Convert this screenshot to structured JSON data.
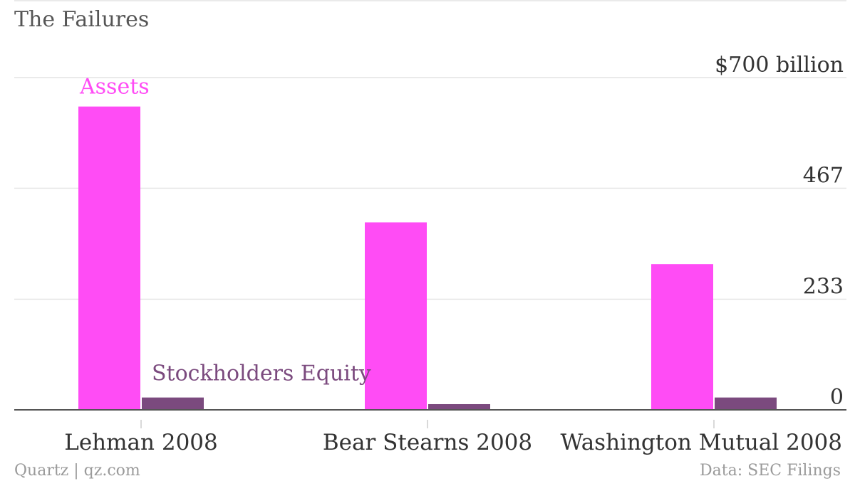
{
  "chart_data": {
    "type": "bar",
    "title": "The Failures",
    "categories": [
      "Lehman 2008",
      "Bear Stearns 2008",
      "Washington Mutual 2008"
    ],
    "series": [
      {
        "name": "Assets",
        "color": "#ff4cf5",
        "values": [
          639,
          395,
          307
        ]
      },
      {
        "name": "Stockholders Equity",
        "color": "#7b4a7e",
        "values": [
          26,
          12,
          26
        ]
      }
    ],
    "ylim": [
      0,
      700
    ],
    "yticks": [
      {
        "value": 700,
        "label": "$700 billion"
      },
      {
        "value": 467,
        "label": "467"
      },
      {
        "value": 233,
        "label": "233"
      },
      {
        "value": 0,
        "label": "0"
      }
    ],
    "grid": true,
    "axis_position": "right",
    "xlabel": "",
    "ylabel": ""
  },
  "footer": {
    "source_left": "Quartz | qz.com",
    "source_right": "Data: SEC Filings"
  }
}
